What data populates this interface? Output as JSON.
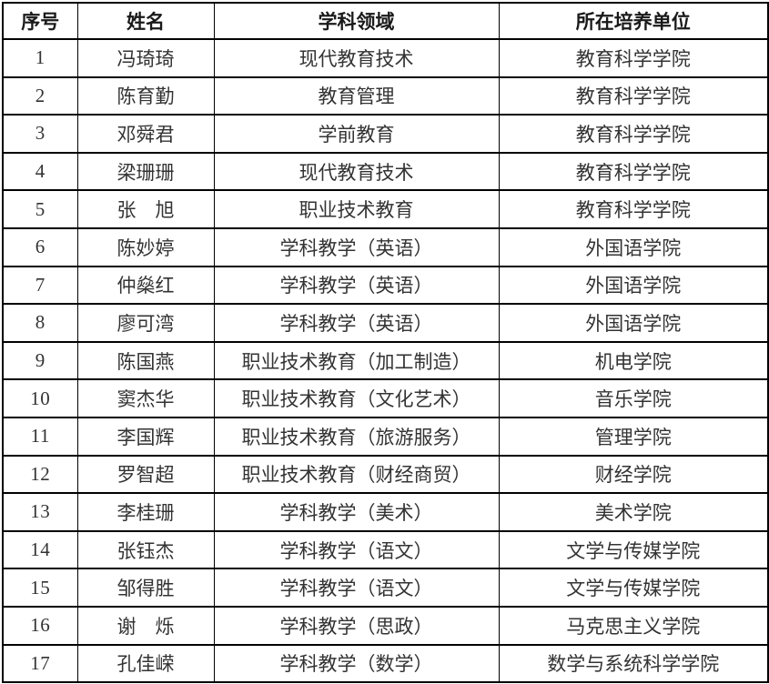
{
  "table": {
    "columns": [
      "序号",
      "姓名",
      "学科领域",
      "所在培养单位"
    ],
    "rows": [
      {
        "no": "1",
        "name": "冯琦琦",
        "field": "现代教育技术",
        "unit": "教育科学学院"
      },
      {
        "no": "2",
        "name": "陈育勤",
        "field": "教育管理",
        "unit": "教育科学学院"
      },
      {
        "no": "3",
        "name": "邓舜君",
        "field": "学前教育",
        "unit": "教育科学学院"
      },
      {
        "no": "4",
        "name": "梁珊珊",
        "field": "现代教育技术",
        "unit": "教育科学学院"
      },
      {
        "no": "5",
        "name": "张　旭",
        "field": "职业技术教育",
        "unit": "教育科学学院"
      },
      {
        "no": "6",
        "name": "陈妙婷",
        "field": "学科教学（英语）",
        "unit": "外国语学院"
      },
      {
        "no": "7",
        "name": "仲燊红",
        "field": "学科教学（英语）",
        "unit": "外国语学院"
      },
      {
        "no": "8",
        "name": "廖可湾",
        "field": "学科教学（英语）",
        "unit": "外国语学院"
      },
      {
        "no": "9",
        "name": "陈国燕",
        "field": "职业技术教育（加工制造）",
        "unit": "机电学院"
      },
      {
        "no": "10",
        "name": "窦杰华",
        "field": "职业技术教育（文化艺术）",
        "unit": "音乐学院"
      },
      {
        "no": "11",
        "name": "李国辉",
        "field": "职业技术教育（旅游服务）",
        "unit": "管理学院"
      },
      {
        "no": "12",
        "name": "罗智超",
        "field": "职业技术教育（财经商贸）",
        "unit": "财经学院"
      },
      {
        "no": "13",
        "name": "李桂珊",
        "field": "学科教学（美术）",
        "unit": "美术学院"
      },
      {
        "no": "14",
        "name": "张钰杰",
        "field": "学科教学（语文）",
        "unit": "文学与传媒学院"
      },
      {
        "no": "15",
        "name": "邹得胜",
        "field": "学科教学（语文）",
        "unit": "文学与传媒学院"
      },
      {
        "no": "16",
        "name": "谢　烁",
        "field": "学科教学（思政）",
        "unit": "马克思主义学院"
      },
      {
        "no": "17",
        "name": "孔佳嵘",
        "field": "学科教学（数学）",
        "unit": "数学与系统科学学院"
      }
    ]
  },
  "colors": {
    "border": "#000000",
    "header_text": "#1a1a1a",
    "body_text": "#333333",
    "background": "#ffffff"
  }
}
